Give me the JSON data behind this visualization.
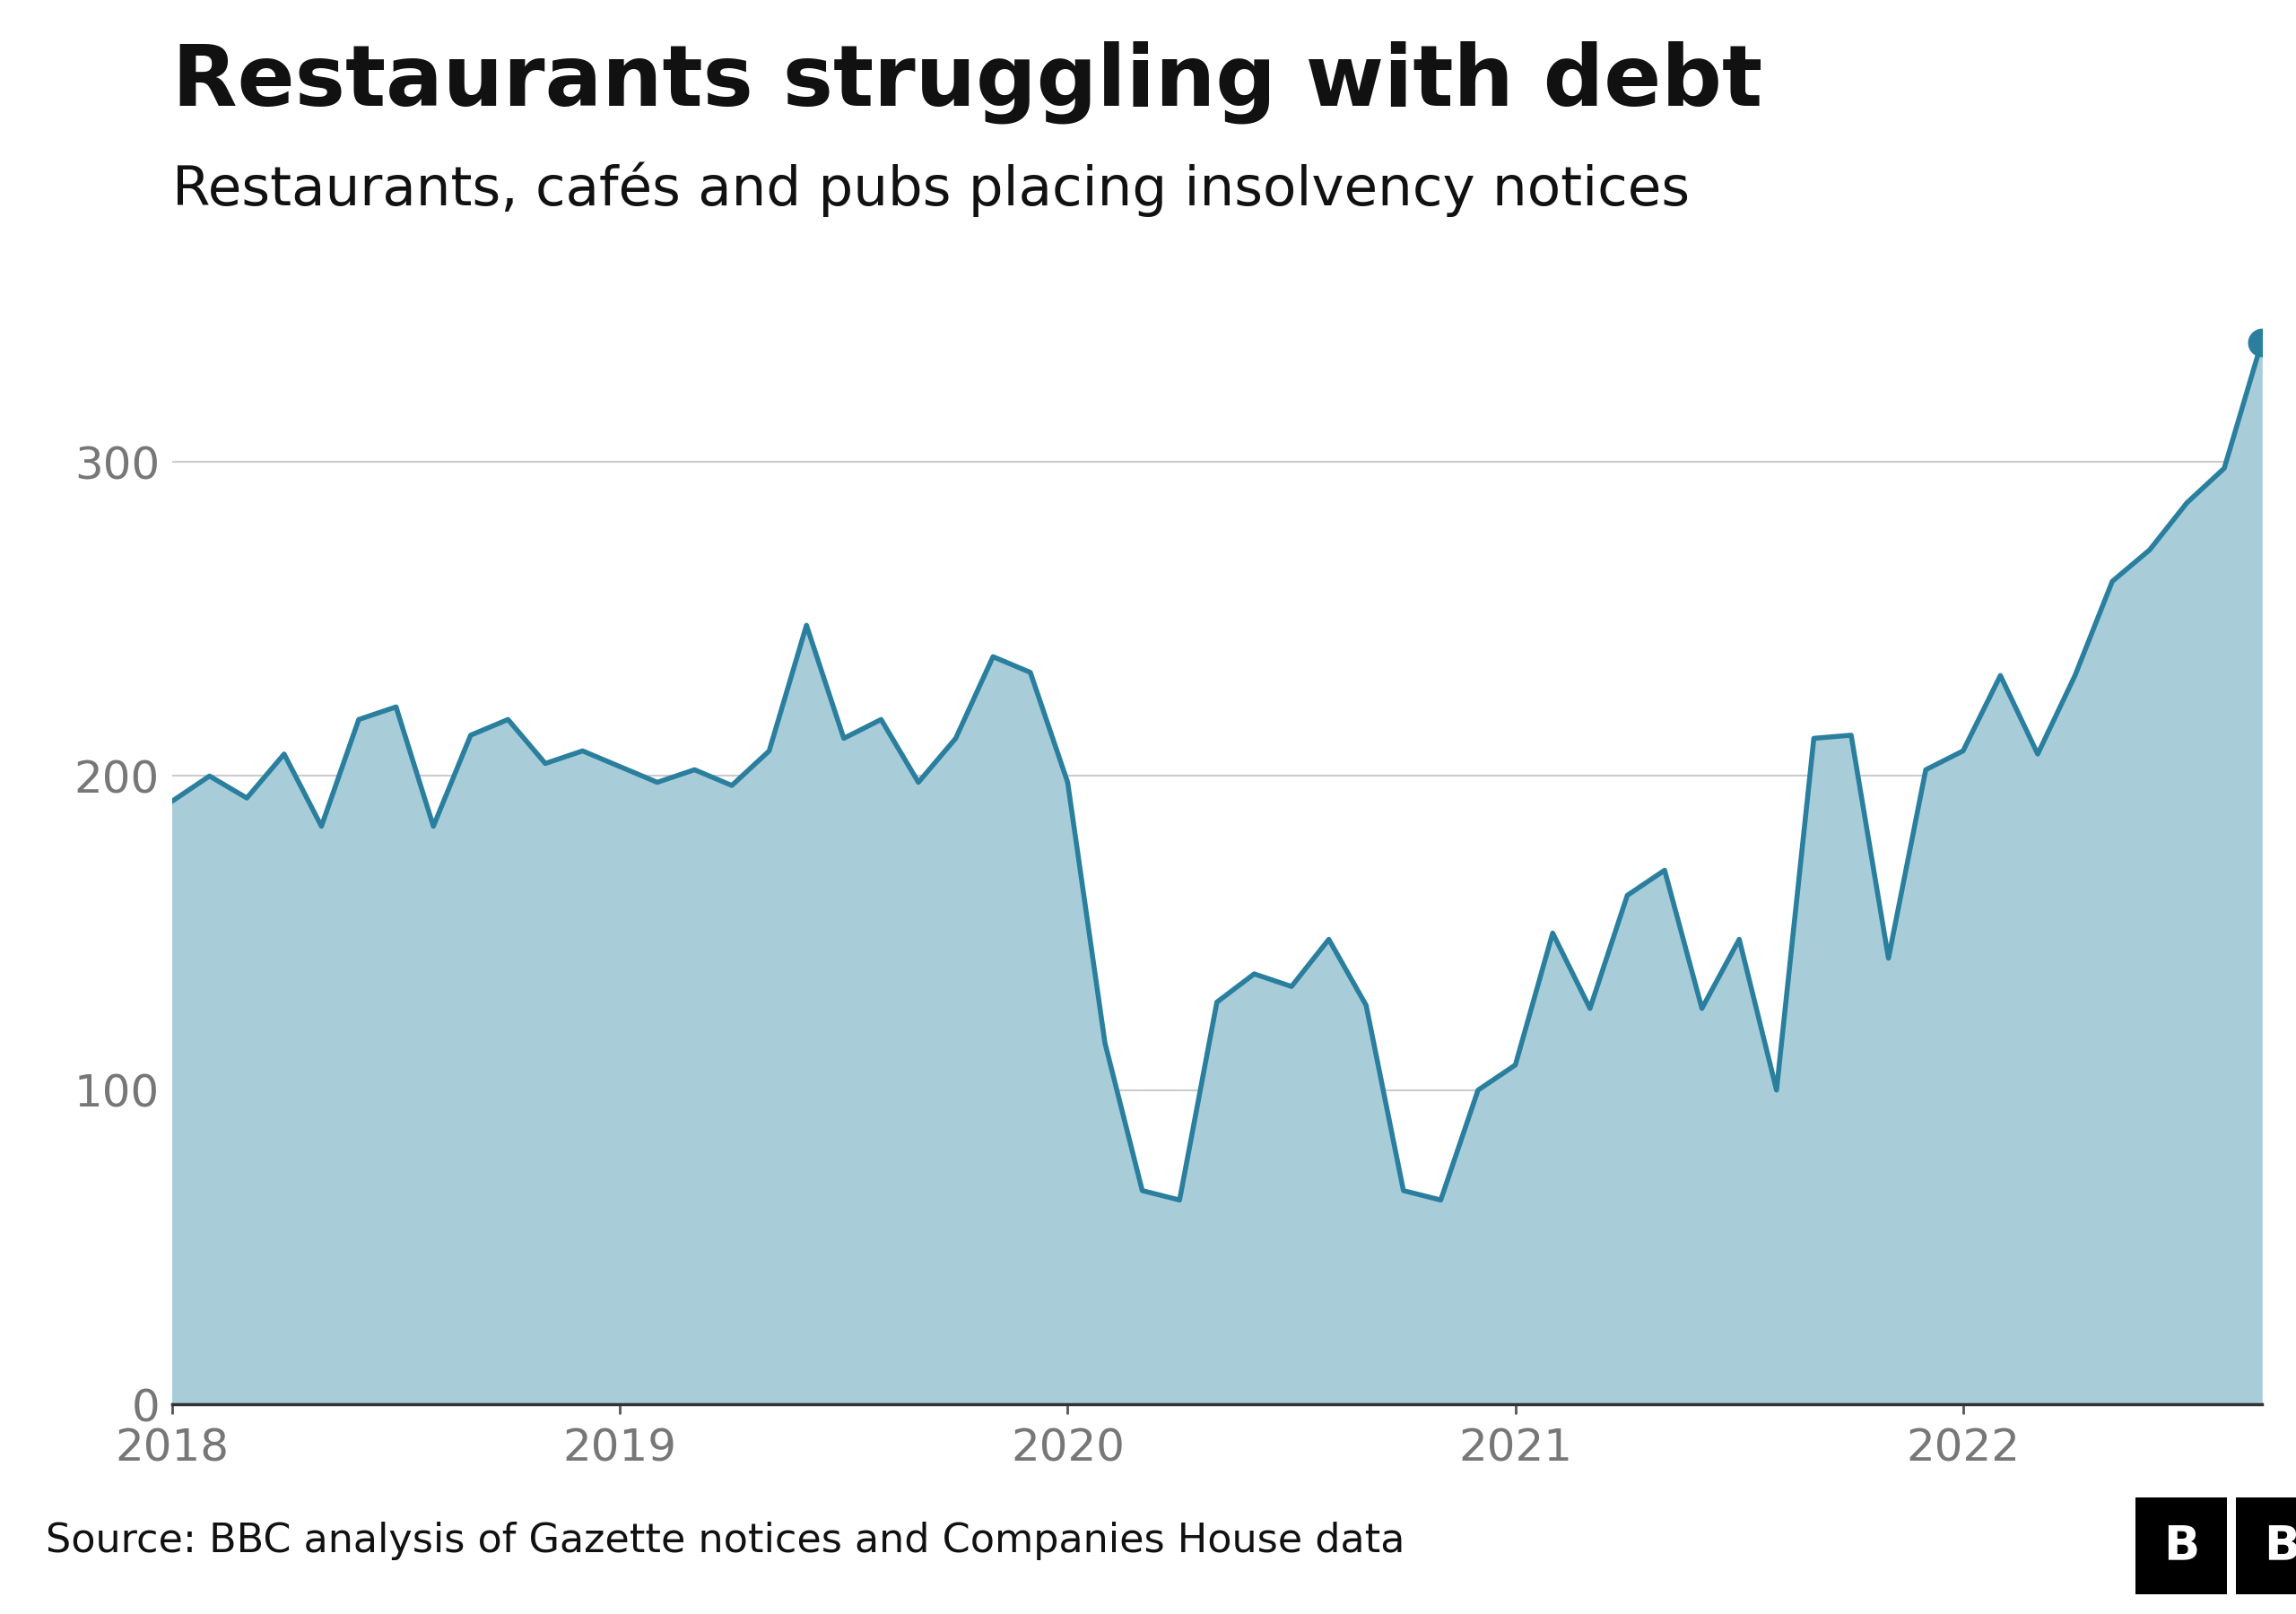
{
  "title": "Restaurants struggling with debt",
  "subtitle": "Restaurants, cafés and pubs placing insolvency notices",
  "source": "Source: BBC analysis of Gazette notices and Companies House data",
  "line_color": "#2a7f9e",
  "fill_color": "#a8cdd9",
  "background_color": "#ffffff",
  "dot_color": "#2a7f9e",
  "title_fontsize": 68,
  "subtitle_fontsize": 44,
  "source_fontsize": 32,
  "tick_fontsize": 36,
  "ylim": [
    0,
    370
  ],
  "yticks": [
    0,
    100,
    200,
    300
  ],
  "x_labels": [
    "2018",
    "2019",
    "2020",
    "2021",
    "2022"
  ],
  "data": [
    192,
    200,
    193,
    207,
    184,
    218,
    222,
    184,
    213,
    218,
    204,
    208,
    203,
    198,
    202,
    197,
    208,
    248,
    212,
    218,
    198,
    212,
    238,
    233,
    198,
    115,
    68,
    65,
    128,
    137,
    133,
    148,
    127,
    68,
    65,
    100,
    108,
    150,
    126,
    162,
    170,
    126,
    148,
    100,
    212,
    213,
    142,
    202,
    208,
    232,
    207,
    232,
    262,
    272,
    287,
    298,
    338
  ],
  "year_positions": [
    0,
    12,
    24,
    36,
    48
  ],
  "footer_line_color": "#111111",
  "bbc_bg": "#000000",
  "bbc_fg": "#ffffff"
}
